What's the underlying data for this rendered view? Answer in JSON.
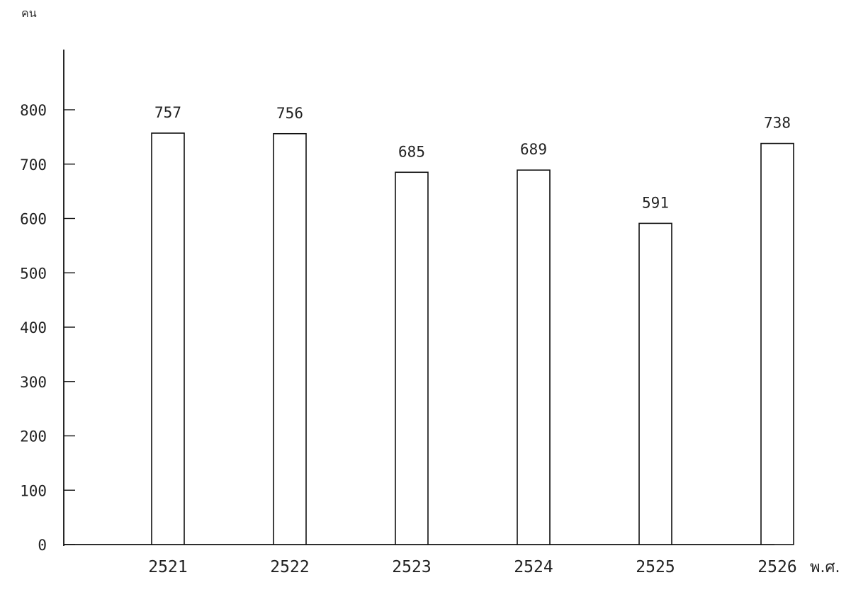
{
  "chart_data": {
    "type": "bar",
    "categories": [
      "2521",
      "2522",
      "2523",
      "2524",
      "2525",
      "2526"
    ],
    "values": [
      757,
      756,
      685,
      689,
      591,
      738
    ],
    "value_labels": [
      "757",
      "756",
      "685",
      "689",
      "591",
      "738"
    ],
    "ylabel": "คน",
    "xunit": "พ.ศ.",
    "yticks": [
      "0",
      "100",
      "200",
      "300",
      "400",
      "500",
      "600",
      "700",
      "800"
    ],
    "ylim": [
      0,
      800
    ],
    "grid": false,
    "legend": "none"
  }
}
